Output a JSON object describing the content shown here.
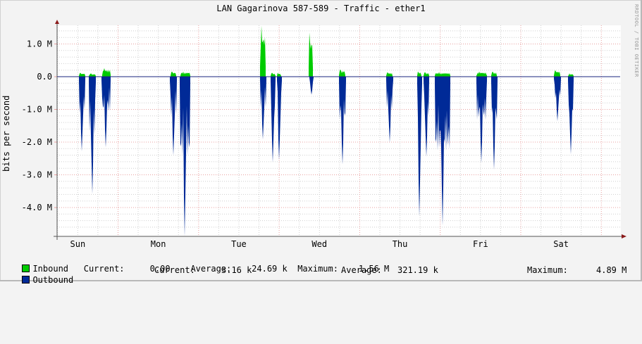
{
  "title": "LAN Gagarinova 587-589 - Traffic - ether1",
  "watermark": "RRDTOOL / TOBI OETIKER",
  "chart_data": {
    "type": "area",
    "title": "LAN Gagarinova 587-589 - Traffic - ether1",
    "xlabel": "",
    "ylabel": "bits per second",
    "ylim": [
      -4.88,
      1.57
    ],
    "y_unit": "M (bits per second)",
    "y_ticks": [
      {
        "label": "1.0 M",
        "value": 1.0
      },
      {
        "label": "0.0",
        "value": 0.0
      },
      {
        "label": "-1.0 M",
        "value": -1.0
      },
      {
        "label": "-2.0 M",
        "value": -2.0
      },
      {
        "label": "-3.0 M",
        "value": -3.0
      },
      {
        "label": "-4.0 M",
        "value": -4.0
      }
    ],
    "categories": [
      "Sun",
      "Mon",
      "Tue",
      "Wed",
      "Thu",
      "Fri",
      "Sat"
    ],
    "grid": true,
    "legend_position": "bottom",
    "series": [
      {
        "name": "Inbound",
        "color": "#00cc00",
        "direction": "up",
        "bursts": [
          {
            "x": 112,
            "w": 9,
            "peak": 0.12
          },
          {
            "x": 126,
            "w": 10,
            "peak": 0.1
          },
          {
            "x": 145,
            "w": 12,
            "peak": 0.26
          },
          {
            "x": 242,
            "w": 8,
            "peak": 0.16
          },
          {
            "x": 256,
            "w": 14,
            "peak": 0.16
          },
          {
            "x": 369,
            "w": 8,
            "peak": 1.56
          },
          {
            "x": 384,
            "w": 7,
            "peak": 0.12
          },
          {
            "x": 393,
            "w": 6,
            "peak": 0.12
          },
          {
            "x": 438,
            "w": 6,
            "peak": 1.35
          },
          {
            "x": 481,
            "w": 9,
            "peak": 0.22
          },
          {
            "x": 548,
            "w": 9,
            "peak": 0.14
          },
          {
            "x": 592,
            "w": 6,
            "peak": 0.16
          },
          {
            "x": 601,
            "w": 8,
            "peak": 0.14
          },
          {
            "x": 617,
            "w": 22,
            "peak": 0.14
          },
          {
            "x": 676,
            "w": 15,
            "peak": 0.16
          },
          {
            "x": 697,
            "w": 8,
            "peak": 0.16
          },
          {
            "x": 786,
            "w": 9,
            "peak": 0.2
          },
          {
            "x": 806,
            "w": 8,
            "peak": 0.1
          }
        ]
      },
      {
        "name": "Outbound",
        "color": "#002a97",
        "direction": "down",
        "bursts": [
          {
            "x": 112,
            "w": 9,
            "peak": 2.28
          },
          {
            "x": 126,
            "w": 10,
            "peak": 3.58
          },
          {
            "x": 144,
            "w": 13,
            "peak": 2.16
          },
          {
            "x": 241,
            "w": 10,
            "peak": 2.4
          },
          {
            "x": 255,
            "w": 15,
            "peak": 4.88
          },
          {
            "x": 369,
            "w": 9,
            "peak": 1.92
          },
          {
            "x": 384,
            "w": 7,
            "peak": 2.62
          },
          {
            "x": 393,
            "w": 7,
            "peak": 2.55
          },
          {
            "x": 439,
            "w": 6,
            "peak": 0.55
          },
          {
            "x": 481,
            "w": 10,
            "peak": 2.68
          },
          {
            "x": 548,
            "w": 10,
            "peak": 2.01
          },
          {
            "x": 592,
            "w": 7,
            "peak": 4.27
          },
          {
            "x": 601,
            "w": 8,
            "peak": 2.45
          },
          {
            "x": 617,
            "w": 22,
            "peak": 4.55
          },
          {
            "x": 676,
            "w": 15,
            "peak": 2.64
          },
          {
            "x": 697,
            "w": 9,
            "peak": 2.84
          },
          {
            "x": 786,
            "w": 10,
            "peak": 1.36
          },
          {
            "x": 806,
            "w": 8,
            "peak": 2.37
          }
        ]
      }
    ]
  },
  "legend": {
    "inbound": {
      "label": "Inbound",
      "color": "#00cc00",
      "current_label": "Current:",
      "current": "0.00",
      "average_label": "Average:",
      "average": "24.69 k",
      "maximum_label": "Maximum:",
      "maximum": "1.56 M"
    },
    "outbound": {
      "label": "Outbound",
      "color": "#002a97",
      "current_label": "Current:",
      "current": "3.16 k",
      "average_label": "Average:",
      "average": "321.19 k",
      "maximum_label": "Maximum:",
      "maximum": "4.89 M"
    }
  }
}
